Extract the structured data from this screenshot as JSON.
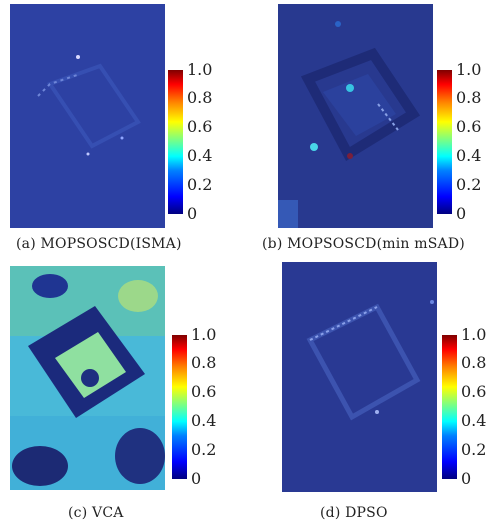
{
  "panels": [
    {
      "caption": "(a) MOPSOSCD(ISMA)",
      "colorbar_ticks": [
        "1.0",
        "0.8",
        "0.6",
        "0.4",
        "0.2",
        "0"
      ]
    },
    {
      "caption": "(b) MOPSOSCD(min mSAD)",
      "colorbar_ticks": [
        "1.0",
        "0.8",
        "0.6",
        "0.4",
        "0.2",
        "0"
      ]
    },
    {
      "caption": "(c) VCA",
      "colorbar_ticks": [
        "1.0",
        "0.8",
        "0.6",
        "0.4",
        "0.2",
        "0"
      ]
    },
    {
      "caption": "(d) DPSO",
      "colorbar_ticks": [
        "1.0",
        "0.8",
        "0.6",
        "0.4",
        "0.2",
        "0"
      ]
    }
  ],
  "colormap": "jet",
  "colors": {
    "low": "#00007f",
    "mid": "#00ffff",
    "high": "#7f0000"
  }
}
